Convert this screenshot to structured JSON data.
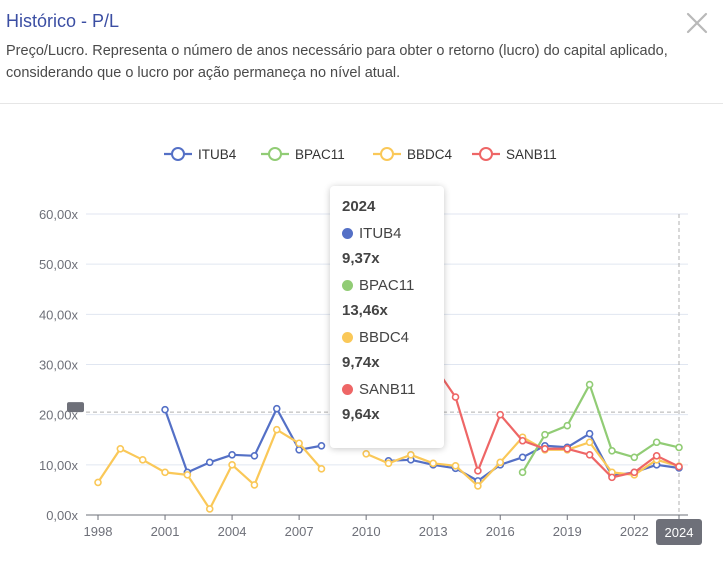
{
  "header": {
    "title": "Histórico - P/L",
    "description": "Preço/Lucro. Representa o número de anos necessário para obter o retorno (lucro) do capital aplicado, considerando que o lucro por ação permaneça no nível atual.",
    "close_icon": "close-icon"
  },
  "chart_data": {
    "type": "line",
    "x": [
      1998,
      1999,
      2000,
      2001,
      2002,
      2003,
      2004,
      2005,
      2006,
      2007,
      2008,
      2009,
      2010,
      2011,
      2012,
      2013,
      2014,
      2015,
      2016,
      2017,
      2018,
      2019,
      2020,
      2021,
      2022,
      2023,
      2024
    ],
    "x_tick_labels": [
      "1998",
      "2001",
      "2004",
      "2007",
      "2010",
      "2013",
      "2016",
      "2019",
      "2022",
      "2024"
    ],
    "y_tick_labels": [
      "0,00x",
      "10,00x",
      "20,00x",
      "30,00x",
      "40,00x",
      "50,00x",
      "60,00x"
    ],
    "ylim": [
      0,
      60
    ],
    "legend_position": "top",
    "grid": true,
    "series": [
      {
        "name": "ITUB4",
        "color": "#5470c6",
        "values": [
          null,
          null,
          null,
          21.0,
          8.5,
          10.5,
          12.0,
          11.8,
          21.2,
          13.0,
          13.8,
          null,
          null,
          10.8,
          11.0,
          10.0,
          9.3,
          6.8,
          10.0,
          11.5,
          13.8,
          13.5,
          16.2,
          7.8,
          8.5,
          10.0,
          9.37
        ]
      },
      {
        "name": "BPAC11",
        "color": "#91cc75",
        "values": [
          null,
          null,
          null,
          null,
          null,
          null,
          null,
          null,
          null,
          null,
          null,
          null,
          null,
          null,
          null,
          null,
          null,
          null,
          null,
          8.5,
          16.0,
          17.8,
          26.0,
          12.8,
          11.5,
          14.5,
          13.46
        ]
      },
      {
        "name": "BBDC4",
        "color": "#fac858",
        "values": [
          6.5,
          13.2,
          11.0,
          8.5,
          8.0,
          1.2,
          10.0,
          6.0,
          17.0,
          14.3,
          9.2,
          null,
          12.2,
          10.3,
          12.0,
          10.3,
          9.8,
          5.8,
          10.5,
          15.5,
          13.0,
          13.0,
          14.5,
          8.5,
          8.0,
          11.0,
          9.74
        ]
      },
      {
        "name": "SANB11",
        "color": "#ee6666",
        "values": [
          null,
          null,
          null,
          null,
          null,
          null,
          null,
          null,
          null,
          null,
          null,
          null,
          null,
          null,
          null,
          30.0,
          23.5,
          8.8,
          20.0,
          14.8,
          13.2,
          13.2,
          12.0,
          7.5,
          8.5,
          11.8,
          9.64
        ]
      }
    ],
    "axis_pointer_label": "2024",
    "left_marker_value": 20.5,
    "tooltip": {
      "title": "2024",
      "items": [
        {
          "name": "ITUB4",
          "value": "9,37x",
          "color": "#5470c6"
        },
        {
          "name": "BPAC11",
          "value": "13,46x",
          "color": "#91cc75"
        },
        {
          "name": "BBDC4",
          "value": "9,74x",
          "color": "#fac858"
        },
        {
          "name": "SANB11",
          "value": "9,64x",
          "color": "#ee6666"
        }
      ]
    }
  }
}
